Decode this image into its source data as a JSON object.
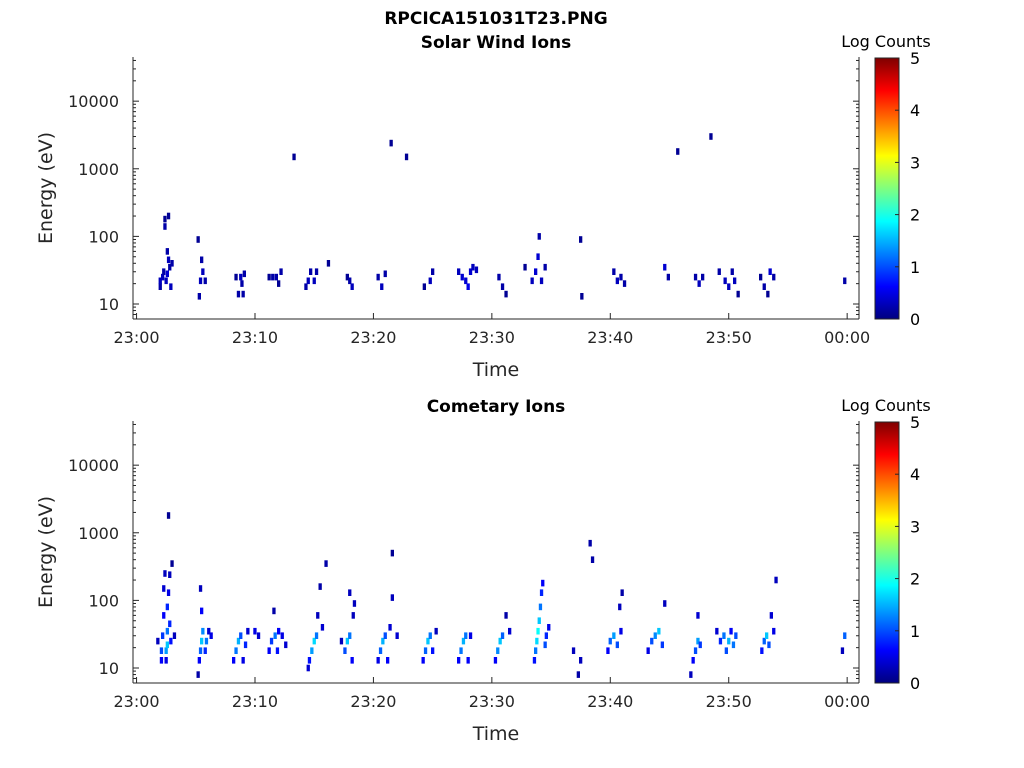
{
  "figure": {
    "title": "RPCICA151031T23.PNG"
  },
  "colorbar": {
    "label": "Log Counts",
    "min": 0,
    "max": 5,
    "ticks": [
      "0",
      "1",
      "2",
      "3",
      "4",
      "5"
    ],
    "colormap": "jet"
  },
  "chart_data": [
    {
      "type": "heatmap",
      "title": "Solar Wind Ions",
      "xlabel": "Time",
      "ylabel": "Energy (eV)",
      "x_ticks": [
        "23:00",
        "23:10",
        "23:20",
        "23:30",
        "23:40",
        "23:50",
        "00:00"
      ],
      "x_tick_minutes": [
        0,
        10,
        20,
        30,
        40,
        50,
        60
      ],
      "xlim_minutes": [
        -0.3,
        61.0
      ],
      "y_scale": "log",
      "y_ticks": [
        "10",
        "100",
        "1000",
        "10000"
      ],
      "ylim": [
        6,
        45000
      ],
      "value_label": "Log Counts",
      "cells": [
        [
          2.0,
          18,
          0.2
        ],
        [
          2.0,
          22,
          0.3
        ],
        [
          2.2,
          25,
          0.3
        ],
        [
          2.3,
          30,
          0.2
        ],
        [
          2.4,
          180,
          0.1
        ],
        [
          2.4,
          140,
          0.2
        ],
        [
          2.5,
          22,
          0.3
        ],
        [
          2.6,
          28,
          0.4
        ],
        [
          2.6,
          60,
          0.2
        ],
        [
          2.7,
          200,
          0.1
        ],
        [
          2.7,
          45,
          0.3
        ],
        [
          2.8,
          35,
          0.2
        ],
        [
          2.9,
          18,
          0.3
        ],
        [
          3.0,
          40,
          0.2
        ],
        [
          5.2,
          90,
          0.1
        ],
        [
          5.3,
          13,
          0.2
        ],
        [
          5.4,
          22,
          0.3
        ],
        [
          5.5,
          45,
          0.2
        ],
        [
          5.6,
          30,
          0.3
        ],
        [
          5.8,
          22,
          0.2
        ],
        [
          8.4,
          25,
          0.1
        ],
        [
          8.6,
          14,
          0.2
        ],
        [
          8.8,
          25,
          0.3
        ],
        [
          8.9,
          20,
          0.2
        ],
        [
          9.0,
          14,
          0.2
        ],
        [
          9.1,
          28,
          0.2
        ],
        [
          11.2,
          25,
          0.1
        ],
        [
          11.5,
          25,
          0.2
        ],
        [
          11.8,
          25,
          0.2
        ],
        [
          12.0,
          20,
          0.1
        ],
        [
          12.2,
          30,
          0.2
        ],
        [
          13.3,
          1500,
          0.1
        ],
        [
          14.3,
          18,
          0.2
        ],
        [
          14.5,
          22,
          0.3
        ],
        [
          14.7,
          30,
          0.2
        ],
        [
          15.0,
          22,
          0.3
        ],
        [
          15.2,
          30,
          0.2
        ],
        [
          16.2,
          40,
          0.1
        ],
        [
          17.8,
          25,
          0.1
        ],
        [
          18.0,
          22,
          0.2
        ],
        [
          18.2,
          18,
          0.3
        ],
        [
          20.4,
          25,
          0.2
        ],
        [
          20.7,
          18,
          0.3
        ],
        [
          21.0,
          28,
          0.2
        ],
        [
          21.5,
          2400,
          0.1
        ],
        [
          22.8,
          1500,
          0.1
        ],
        [
          24.3,
          18,
          0.1
        ],
        [
          24.8,
          22,
          0.3
        ],
        [
          25.0,
          30,
          0.2
        ],
        [
          27.2,
          30,
          0.3
        ],
        [
          27.5,
          25,
          0.4
        ],
        [
          27.8,
          22,
          0.4
        ],
        [
          28.0,
          18,
          0.5
        ],
        [
          28.2,
          30,
          0.4
        ],
        [
          28.4,
          35,
          0.3
        ],
        [
          28.7,
          32,
          0.3
        ],
        [
          30.6,
          25,
          0.2
        ],
        [
          30.9,
          18,
          0.2
        ],
        [
          31.2,
          14,
          0.1
        ],
        [
          32.8,
          35,
          0.1
        ],
        [
          33.4,
          22,
          0.3
        ],
        [
          33.7,
          30,
          0.4
        ],
        [
          33.9,
          50,
          0.4
        ],
        [
          34.0,
          100,
          0.2
        ],
        [
          34.2,
          22,
          0.3
        ],
        [
          34.5,
          35,
          0.2
        ],
        [
          37.5,
          90,
          0.1
        ],
        [
          37.6,
          13,
          0.1
        ],
        [
          40.3,
          30,
          0.2
        ],
        [
          40.6,
          22,
          0.3
        ],
        [
          40.9,
          25,
          0.2
        ],
        [
          41.2,
          20,
          0.2
        ],
        [
          44.6,
          35,
          0.4
        ],
        [
          44.9,
          25,
          0.2
        ],
        [
          45.7,
          1800,
          0.1
        ],
        [
          47.2,
          25,
          0.2
        ],
        [
          47.5,
          20,
          0.3
        ],
        [
          47.8,
          25,
          0.2
        ],
        [
          48.5,
          3000,
          0.1
        ],
        [
          49.2,
          30,
          0.2
        ],
        [
          49.7,
          22,
          0.3
        ],
        [
          50.0,
          18,
          0.3
        ],
        [
          50.3,
          30,
          0.2
        ],
        [
          50.5,
          22,
          0.3
        ],
        [
          50.8,
          14,
          0.1
        ],
        [
          52.7,
          25,
          0.1
        ],
        [
          53.0,
          18,
          0.2
        ],
        [
          53.3,
          14,
          0.1
        ],
        [
          53.5,
          30,
          0.4
        ],
        [
          53.8,
          25,
          0.2
        ],
        [
          59.8,
          22,
          0.2
        ]
      ]
    },
    {
      "type": "heatmap",
      "title": "Cometary Ions",
      "xlabel": "Time",
      "ylabel": "Energy (eV)",
      "x_ticks": [
        "23:00",
        "23:10",
        "23:20",
        "23:30",
        "23:40",
        "23:50",
        "00:00"
      ],
      "x_tick_minutes": [
        0,
        10,
        20,
        30,
        40,
        50,
        60
      ],
      "xlim_minutes": [
        -0.3,
        61.0
      ],
      "y_scale": "log",
      "y_ticks": [
        "10",
        "100",
        "1000",
        "10000"
      ],
      "ylim": [
        6,
        45000
      ],
      "value_label": "Log Counts",
      "cells": [
        [
          1.8,
          25,
          0.3
        ],
        [
          2.1,
          13,
          0.6
        ],
        [
          2.1,
          18,
          1.0
        ],
        [
          2.2,
          30,
          0.9
        ],
        [
          2.3,
          60,
          0.6
        ],
        [
          2.3,
          150,
          0.4
        ],
        [
          2.4,
          250,
          0.3
        ],
        [
          2.5,
          13,
          0.5
        ],
        [
          2.5,
          18,
          1.4
        ],
        [
          2.6,
          22,
          1.6
        ],
        [
          2.6,
          35,
          1.2
        ],
        [
          2.6,
          80,
          0.8
        ],
        [
          2.7,
          130,
          0.5
        ],
        [
          2.8,
          240,
          0.3
        ],
        [
          2.8,
          45,
          0.8
        ],
        [
          2.9,
          25,
          0.7
        ],
        [
          2.7,
          1800,
          0.1
        ],
        [
          3.0,
          350,
          0.1
        ],
        [
          3.2,
          30,
          0.3
        ],
        [
          5.2,
          8,
          0.2
        ],
        [
          5.3,
          13,
          0.6
        ],
        [
          5.4,
          18,
          1.1
        ],
        [
          5.5,
          25,
          1.6
        ],
        [
          5.6,
          35,
          1.3
        ],
        [
          5.5,
          70,
          0.6
        ],
        [
          5.4,
          150,
          0.3
        ],
        [
          5.8,
          18,
          0.8
        ],
        [
          5.9,
          25,
          1.2
        ],
        [
          6.1,
          35,
          0.4
        ],
        [
          6.3,
          30,
          0.5
        ],
        [
          8.2,
          13,
          0.6
        ],
        [
          8.4,
          18,
          1.2
        ],
        [
          8.6,
          25,
          1.5
        ],
        [
          8.8,
          30,
          1.0
        ],
        [
          9.0,
          13,
          0.5
        ],
        [
          9.2,
          22,
          0.8
        ],
        [
          9.4,
          35,
          0.4
        ],
        [
          10.0,
          35,
          0.5
        ],
        [
          10.3,
          30,
          0.4
        ],
        [
          11.2,
          18,
          0.6
        ],
        [
          11.4,
          25,
          0.9
        ],
        [
          11.7,
          30,
          1.2
        ],
        [
          11.9,
          18,
          0.7
        ],
        [
          12.0,
          35,
          0.6
        ],
        [
          11.6,
          70,
          0.2
        ],
        [
          12.3,
          30,
          0.5
        ],
        [
          12.6,
          22,
          0.4
        ],
        [
          14.5,
          10,
          0.4
        ],
        [
          14.6,
          13,
          0.7
        ],
        [
          14.8,
          18,
          1.4
        ],
        [
          15.0,
          25,
          1.7
        ],
        [
          15.2,
          30,
          1.2
        ],
        [
          15.3,
          60,
          0.3
        ],
        [
          15.5,
          160,
          0.2
        ],
        [
          15.7,
          40,
          0.4
        ],
        [
          16.0,
          350,
          0.2
        ],
        [
          17.3,
          25,
          0.3
        ],
        [
          17.6,
          18,
          1.0
        ],
        [
          17.8,
          25,
          1.6
        ],
        [
          18.0,
          30,
          1.2
        ],
        [
          18.2,
          13,
          0.6
        ],
        [
          18.3,
          60,
          0.3
        ],
        [
          18.0,
          130,
          0.3
        ],
        [
          18.4,
          90,
          0.3
        ],
        [
          20.4,
          13,
          0.5
        ],
        [
          20.6,
          18,
          1.1
        ],
        [
          20.8,
          25,
          1.5
        ],
        [
          21.0,
          30,
          1.0
        ],
        [
          21.2,
          13,
          0.6
        ],
        [
          21.4,
          40,
          0.4
        ],
        [
          21.6,
          110,
          0.3
        ],
        [
          21.6,
          500,
          0.1
        ],
        [
          22.0,
          30,
          0.4
        ],
        [
          24.2,
          13,
          0.6
        ],
        [
          24.4,
          18,
          1.1
        ],
        [
          24.6,
          25,
          1.6
        ],
        [
          24.8,
          30,
          1.2
        ],
        [
          25.0,
          18,
          0.7
        ],
        [
          25.3,
          35,
          0.3
        ],
        [
          27.2,
          13,
          0.6
        ],
        [
          27.4,
          18,
          1.2
        ],
        [
          27.6,
          25,
          1.5
        ],
        [
          27.8,
          30,
          1.2
        ],
        [
          28.0,
          13,
          0.6
        ],
        [
          28.2,
          30,
          0.5
        ],
        [
          30.3,
          13,
          0.6
        ],
        [
          30.5,
          18,
          1.3
        ],
        [
          30.7,
          25,
          1.6
        ],
        [
          30.9,
          30,
          1.1
        ],
        [
          31.2,
          60,
          0.2
        ],
        [
          31.5,
          35,
          0.4
        ],
        [
          33.6,
          13,
          0.7
        ],
        [
          33.7,
          18,
          1.2
        ],
        [
          33.8,
          25,
          1.7
        ],
        [
          33.9,
          35,
          1.9
        ],
        [
          34.0,
          50,
          1.6
        ],
        [
          34.1,
          80,
          1.2
        ],
        [
          34.2,
          130,
          0.8
        ],
        [
          34.3,
          180,
          0.6
        ],
        [
          34.5,
          22,
          1.0
        ],
        [
          34.6,
          30,
          0.8
        ],
        [
          34.8,
          40,
          0.5
        ],
        [
          36.9,
          18,
          0.3
        ],
        [
          37.3,
          8,
          0.2
        ],
        [
          37.5,
          13,
          0.3
        ],
        [
          38.3,
          700,
          0.2
        ],
        [
          38.5,
          400,
          0.2
        ],
        [
          39.8,
          18,
          0.6
        ],
        [
          40.0,
          25,
          1.1
        ],
        [
          40.3,
          30,
          1.4
        ],
        [
          40.6,
          22,
          1.0
        ],
        [
          40.9,
          35,
          0.5
        ],
        [
          40.8,
          80,
          0.3
        ],
        [
          41.0,
          130,
          0.2
        ],
        [
          43.2,
          18,
          0.5
        ],
        [
          43.5,
          25,
          1.0
        ],
        [
          43.8,
          30,
          1.3
        ],
        [
          44.1,
          35,
          1.6
        ],
        [
          44.4,
          22,
          0.9
        ],
        [
          44.6,
          90,
          0.3
        ],
        [
          46.8,
          8,
          0.3
        ],
        [
          47.0,
          13,
          0.6
        ],
        [
          47.2,
          18,
          1.0
        ],
        [
          47.4,
          25,
          1.4
        ],
        [
          47.6,
          22,
          0.9
        ],
        [
          47.4,
          60,
          0.4
        ],
        [
          49.0,
          35,
          0.4
        ],
        [
          49.3,
          25,
          0.8
        ],
        [
          49.6,
          30,
          1.2
        ],
        [
          49.8,
          18,
          1.0
        ],
        [
          50.0,
          25,
          1.5
        ],
        [
          50.2,
          35,
          0.6
        ],
        [
          50.4,
          22,
          1.2
        ],
        [
          50.6,
          30,
          1.0
        ],
        [
          52.8,
          18,
          0.7
        ],
        [
          53.0,
          25,
          1.1
        ],
        [
          53.2,
          30,
          1.6
        ],
        [
          53.4,
          22,
          1.0
        ],
        [
          53.6,
          60,
          0.4
        ],
        [
          53.8,
          35,
          0.5
        ],
        [
          54.0,
          200,
          0.3
        ],
        [
          59.6,
          18,
          0.3
        ],
        [
          59.8,
          30,
          1.1
        ]
      ]
    }
  ]
}
